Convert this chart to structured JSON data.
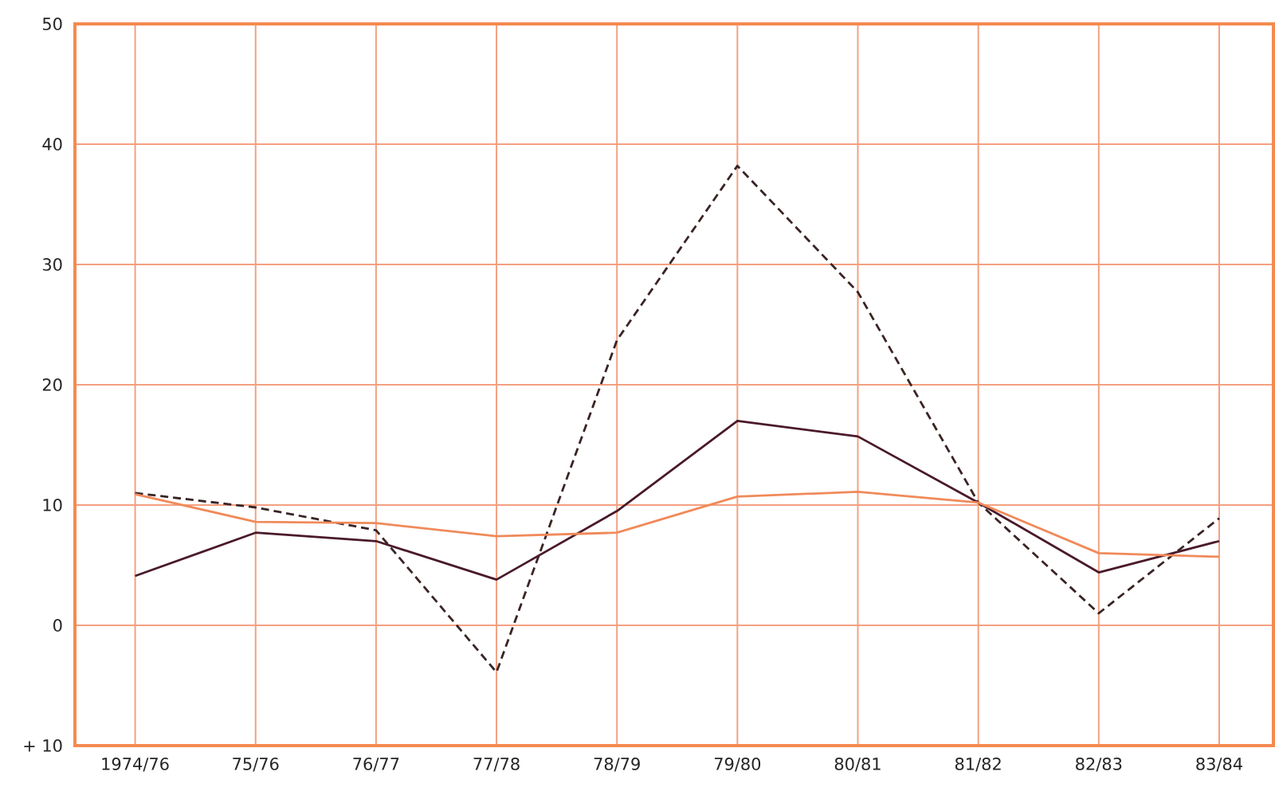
{
  "chart_data": {
    "type": "line",
    "categories": [
      "1974/76",
      "75/76",
      "76/77",
      "77/78",
      "78/79",
      "79/80",
      "80/81",
      "81/82",
      "82/83",
      "83/84"
    ],
    "series": [
      {
        "color": "#3a2424",
        "line_style": "dashed",
        "values": [
          11.0,
          9.8,
          7.9,
          -3.9,
          23.7,
          38.2,
          27.7,
          10.2,
          1.0,
          8.9
        ]
      },
      {
        "color": "#4a1a2a",
        "line_style": "solid",
        "values": [
          4.1,
          7.7,
          7.0,
          3.8,
          9.5,
          17.0,
          15.7,
          10.2,
          4.4,
          7.0
        ]
      },
      {
        "color": "#f08a5a",
        "line_style": "solid",
        "values": [
          10.9,
          8.6,
          8.5,
          7.4,
          7.7,
          10.7,
          11.1,
          10.2,
          6.0,
          5.7
        ]
      }
    ],
    "ylim": [
      -10,
      50
    ],
    "yticks": [
      {
        "value": -10,
        "label": "+ 10"
      },
      0,
      10,
      20,
      30,
      40,
      50
    ],
    "grid": true,
    "marker": "none"
  }
}
